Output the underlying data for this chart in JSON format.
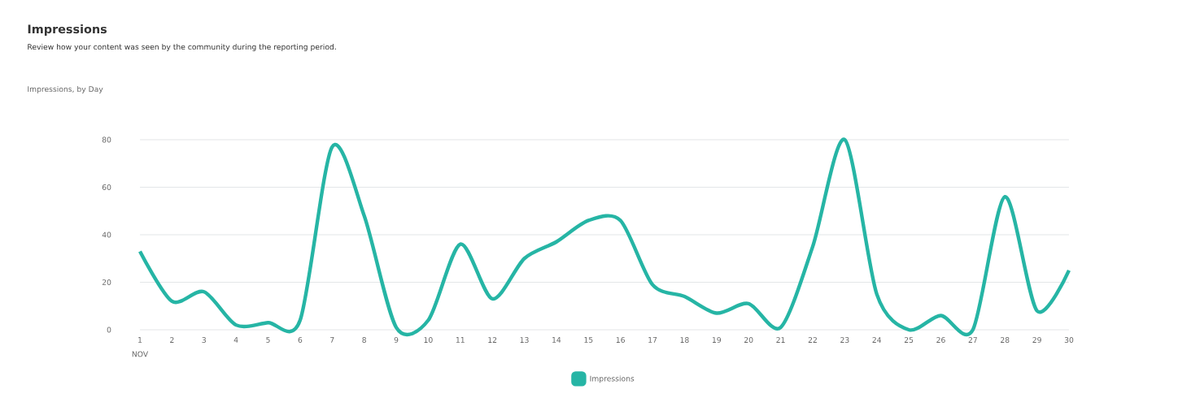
{
  "chart_data": {
    "type": "line",
    "title": "Impressions",
    "subtitle": "Review how your content was seen by the community during the reporting period.",
    "categories": [
      "1",
      "2",
      "3",
      "4",
      "5",
      "6",
      "7",
      "8",
      "9",
      "10",
      "11",
      "12",
      "13",
      "14",
      "15",
      "16",
      "17",
      "18",
      "19",
      "20",
      "21",
      "22",
      "23",
      "24",
      "25",
      "26",
      "27",
      "28",
      "29",
      "30"
    ],
    "series": [
      {
        "name": "Impressions",
        "color": "#26b5a5",
        "values": [
          33,
          12,
          16,
          2,
          3,
          4,
          77,
          48,
          1,
          4,
          36,
          13,
          30,
          37,
          46,
          46,
          19,
          14,
          7,
          11,
          1,
          35,
          80,
          15,
          0,
          6,
          0,
          56,
          8,
          25
        ]
      }
    ],
    "ylim": [
      0,
      80
    ],
    "yticks": [
      0,
      20,
      40,
      60,
      80
    ],
    "grid": "y",
    "legend": "bottom",
    "marker": "none",
    "line_style": "solid",
    "annotations": [
      "Impressions, by Day",
      "NOV"
    ]
  }
}
